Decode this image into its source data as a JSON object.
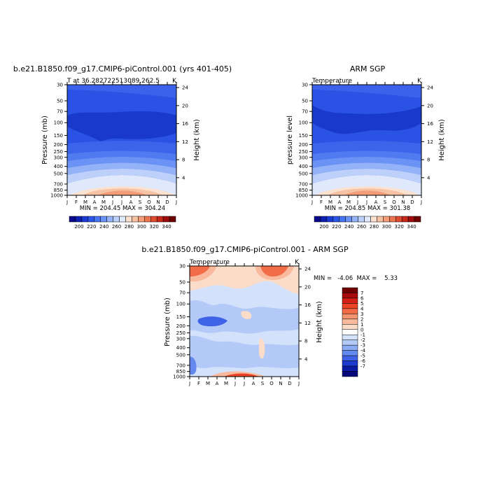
{
  "chart_data": [
    {
      "type": "heatmap",
      "title": "b.e21.B1850.f09_g17.CMIP6-piControl.001 (yrs 401-405)",
      "subtitle_left": "T at 36.282722513089,262.5",
      "subtitle_right": "K",
      "ylabel": "Pressure (mb)",
      "ylabel_right": "Height (km)",
      "months": [
        "J",
        "F",
        "M",
        "A",
        "M",
        "J",
        "J",
        "A",
        "S",
        "O",
        "N",
        "D",
        "J"
      ],
      "pressure_ticks": [
        30,
        50,
        70,
        100,
        150,
        200,
        250,
        300,
        400,
        500,
        700,
        850,
        1000
      ],
      "height_ticks": [
        4,
        8,
        12,
        16,
        20,
        24
      ],
      "min": 204.45,
      "max": 304.24,
      "stats_text": "MIN = 204.45 MAX = 304.24",
      "colorbar": {
        "labels": [
          200,
          220,
          240,
          260,
          280,
          300,
          320,
          340
        ]
      }
    },
    {
      "type": "heatmap",
      "title": "ARM SGP",
      "subtitle_left": "Temperature",
      "subtitle_right": "K",
      "ylabel": "pressure level",
      "ylabel_right": "Height (km)",
      "months": [
        "J",
        "F",
        "M",
        "A",
        "M",
        "J",
        "J",
        "A",
        "S",
        "O",
        "N",
        "D",
        "J"
      ],
      "pressure_ticks": [
        30,
        50,
        70,
        100,
        150,
        200,
        250,
        300,
        400,
        500,
        700,
        850,
        1000
      ],
      "height_ticks": [
        4,
        8,
        12,
        16,
        20,
        24
      ],
      "min": 204.85,
      "max": 301.38,
      "stats_text": "MIN = 204.85 MAX = 301.38",
      "colorbar": {
        "labels": [
          200,
          220,
          240,
          260,
          280,
          300,
          320,
          340
        ]
      }
    },
    {
      "type": "heatmap",
      "title": "b.e21.B1850.f09_g17.CMIP6-piControl.001  - ARM SGP",
      "subtitle_left": "Temperature",
      "subtitle_right": "K",
      "ylabel": "Pressure (mb)",
      "ylabel_right": "Height (km)",
      "months": [
        "J",
        "F",
        "M",
        "A",
        "M",
        "J",
        "J",
        "A",
        "S",
        "O",
        "N",
        "D",
        "J"
      ],
      "pressure_ticks": [
        30,
        50,
        70,
        100,
        150,
        200,
        250,
        300,
        400,
        500,
        700,
        850,
        1000
      ],
      "height_ticks": [
        4,
        8,
        12,
        16,
        20,
        24
      ],
      "min": -4.06,
      "max": 5.33,
      "stats_text": "MIN =   -4.06  MAX =    5.33",
      "colorbar": {
        "labels": [
          "7",
          "6",
          "5",
          "4",
          "3",
          "2",
          "1",
          "0",
          "-1",
          "-2",
          "-3",
          "-4",
          "-5",
          "-6",
          "-7"
        ]
      }
    }
  ],
  "colors": {
    "abs_scale": [
      "#08088a",
      "#0c1fb0",
      "#1a3ad4",
      "#2b55e8",
      "#4774f0",
      "#6b93f5",
      "#94b3f8",
      "#bcd0fa",
      "#e0e8fb",
      "#fae1d0",
      "#f7c2a4",
      "#f39d78",
      "#ec7551",
      "#df4b30",
      "#c62819",
      "#9e0c0c",
      "#6e0000"
    ],
    "diff_scale": [
      "#6e0000",
      "#a80b0b",
      "#d42016",
      "#ea4326",
      "#f26c47",
      "#f5956f",
      "#f8b99c",
      "#fadcc8",
      "#ffffff",
      "#d4e1fb",
      "#b3c9f8",
      "#8aacf4",
      "#6389ef",
      "#3f63e6",
      "#1d3ccf",
      "#0a1ba6",
      "#05087a"
    ]
  }
}
